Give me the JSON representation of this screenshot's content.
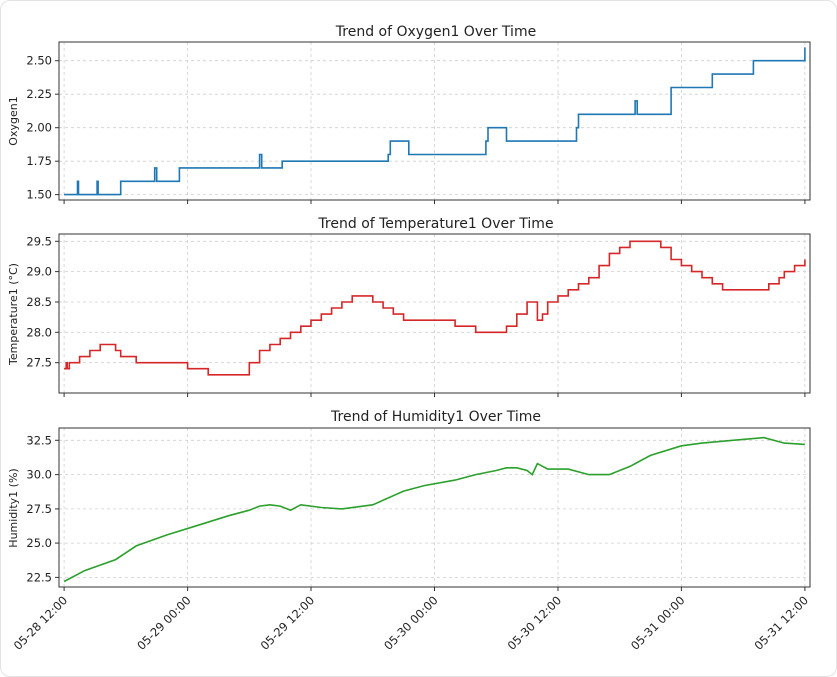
{
  "chart_data": {
    "type": "line",
    "x_axis": {
      "ticks": [
        "05-28 12:00",
        "05-29 00:00",
        "05-29 12:00",
        "05-30 00:00",
        "05-30 12:00",
        "05-31 00:00",
        "05-31 12:00"
      ],
      "range_hours": [
        -0.5,
        72.5
      ]
    },
    "panels": [
      {
        "id": "oxygen",
        "title": "Trend of Oxygen1 Over Time",
        "ylabel": "Oxygen1",
        "color": "#1f77b4",
        "ylim": [
          1.46,
          2.64
        ],
        "yticks": [
          "1.50",
          "1.75",
          "2.00",
          "2.25",
          "2.50"
        ],
        "yticks_values": [
          1.5,
          1.75,
          2.0,
          2.25,
          2.5
        ],
        "x_hours": [
          0,
          1.3,
          1.4,
          3.2,
          3.3,
          5.5,
          8.8,
          9.0,
          11.2,
          19.0,
          19.2,
          21.2,
          31.5,
          31.7,
          33.5,
          41.0,
          41.2,
          43.0,
          49.8,
          50.0,
          51.8,
          55.5,
          55.7,
          59.0,
          63.0,
          67.0,
          72.0
        ],
        "values": [
          1.5,
          1.6,
          1.5,
          1.6,
          1.5,
          1.6,
          1.7,
          1.6,
          1.7,
          1.8,
          1.7,
          1.75,
          1.8,
          1.9,
          1.8,
          1.9,
          2.0,
          1.9,
          2.0,
          2.1,
          2.1,
          2.2,
          2.1,
          2.3,
          2.4,
          2.5,
          2.6
        ]
      },
      {
        "id": "temperature",
        "title": "Trend of Temperature1 Over Time",
        "ylabel": "Temperature1 (°C)",
        "color": "#d62728",
        "ylim": [
          27.0,
          29.62
        ],
        "yticks": [
          "27.5",
          "28.0",
          "28.5",
          "29.0",
          "29.5"
        ],
        "yticks_values": [
          27.5,
          28.0,
          28.5,
          29.0,
          29.5
        ],
        "x_hours": [
          0,
          0.2,
          0.3,
          0.5,
          1.0,
          1.5,
          2.0,
          2.5,
          3.0,
          3.5,
          4.0,
          4.5,
          5.0,
          5.5,
          6.0,
          6.5,
          7.0,
          7.5,
          8.0,
          11.0,
          12.0,
          14.0,
          15.0,
          18.0,
          19.0,
          20.0,
          21.0,
          22.0,
          23.0,
          24.0,
          25.0,
          26.0,
          27.0,
          28.0,
          29.0,
          30.0,
          31.0,
          32.0,
          33.0,
          34.0,
          37.0,
          38.0,
          39.5,
          40.0,
          42.0,
          43.0,
          44.0,
          45.0,
          45.5,
          46.0,
          46.5,
          47.0,
          48.0,
          49.0,
          50.0,
          51.0,
          52.0,
          53.0,
          54.0,
          55.0,
          56.0,
          58.0,
          59.0,
          60.0,
          61.0,
          62.0,
          63.0,
          64.0,
          65.0,
          68.0,
          68.5,
          69.5,
          70.0,
          71.0,
          72.0
        ],
        "values": [
          27.4,
          27.5,
          27.4,
          27.5,
          27.5,
          27.6,
          27.6,
          27.7,
          27.7,
          27.8,
          27.8,
          27.8,
          27.7,
          27.6,
          27.6,
          27.6,
          27.5,
          27.5,
          27.5,
          27.5,
          27.4,
          27.3,
          27.3,
          27.5,
          27.7,
          27.8,
          27.9,
          28.0,
          28.1,
          28.2,
          28.3,
          28.4,
          28.5,
          28.6,
          28.6,
          28.5,
          28.4,
          28.3,
          28.2,
          28.2,
          28.2,
          28.1,
          28.1,
          28.0,
          28.0,
          28.1,
          28.3,
          28.5,
          28.5,
          28.2,
          28.3,
          28.5,
          28.6,
          28.7,
          28.8,
          28.9,
          29.1,
          29.3,
          29.4,
          29.5,
          29.5,
          29.4,
          29.2,
          29.1,
          29.0,
          28.9,
          28.8,
          28.7,
          28.7,
          28.7,
          28.8,
          28.9,
          29.0,
          29.1,
          29.2
        ]
      },
      {
        "id": "humidity",
        "title": "Trend of Humidity1 Over Time",
        "ylabel": "Humidity1 (%)",
        "color": "#2ca02c",
        "ylim": [
          21.8,
          33.4
        ],
        "yticks": [
          "22.5",
          "25.0",
          "27.5",
          "30.0",
          "32.5"
        ],
        "yticks_values": [
          22.5,
          25.0,
          27.5,
          30.0,
          32.5
        ],
        "x_hours": [
          0,
          2,
          5,
          7,
          10,
          13,
          16,
          18,
          19,
          20,
          21,
          22,
          23,
          25,
          27,
          30,
          33,
          35,
          38,
          40,
          42,
          43,
          44,
          45,
          45.5,
          46,
          47,
          48,
          49,
          51,
          53,
          55,
          57,
          60,
          62,
          65,
          68,
          70,
          72
        ],
        "values": [
          22.2,
          23.0,
          23.8,
          24.8,
          25.6,
          26.3,
          27.0,
          27.4,
          27.7,
          27.8,
          27.7,
          27.4,
          27.8,
          27.6,
          27.5,
          27.8,
          28.8,
          29.2,
          29.6,
          30.0,
          30.3,
          30.5,
          30.5,
          30.3,
          30.0,
          30.8,
          30.4,
          30.4,
          30.4,
          30.0,
          30.0,
          30.6,
          31.4,
          32.1,
          32.3,
          32.5,
          32.7,
          32.3,
          32.2
        ]
      }
    ]
  }
}
